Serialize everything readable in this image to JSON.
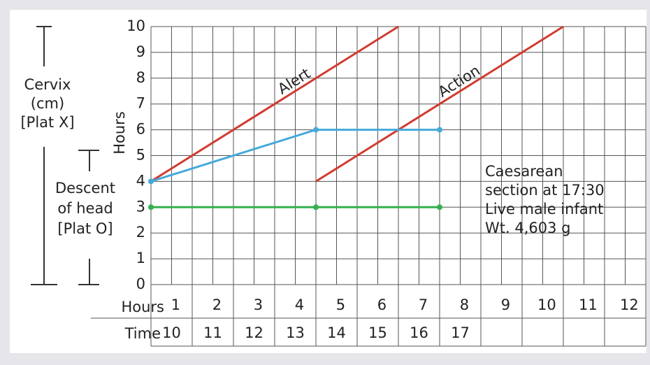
{
  "chart_data": {
    "type": "line",
    "ylabel": "Hours",
    "xlim": [
      0,
      12
    ],
    "ylim": [
      0,
      10
    ],
    "yticks": [
      0,
      1,
      2,
      3,
      4,
      5,
      6,
      7,
      8,
      9,
      10
    ],
    "grid": true,
    "series": [
      {
        "name": "Alert",
        "color": "#d23b2f",
        "x": [
          0,
          6
        ],
        "values": [
          4,
          10
        ]
      },
      {
        "name": "Action",
        "color": "#d23b2f",
        "x": [
          4,
          10
        ],
        "values": [
          4,
          10
        ]
      },
      {
        "color": "#45a9da",
        "x": [
          0,
          4,
          7
        ],
        "values": [
          4,
          6,
          6
        ],
        "markers": true
      },
      {
        "color": "#35b04f",
        "x": [
          0,
          4,
          7
        ],
        "values": [
          3,
          3,
          3
        ],
        "markers": true
      }
    ],
    "hours_row_label": "Hours",
    "hour_labels": [
      1,
      2,
      3,
      4,
      5,
      6,
      7,
      8,
      9,
      10,
      11,
      12
    ],
    "time_row_label": "Time",
    "time_labels": [
      10,
      11,
      12,
      13,
      14,
      15,
      16,
      17,
      null,
      null,
      null,
      null
    ],
    "cervix_label": [
      "Cervix",
      "(cm)",
      "[Plat X]"
    ],
    "descent_label": [
      "Descent",
      "of head",
      "[Plat O]"
    ],
    "annotation": [
      "Caesarean",
      "section at 17:30",
      "Live male infant",
      "Wt. 4,603 g"
    ]
  }
}
